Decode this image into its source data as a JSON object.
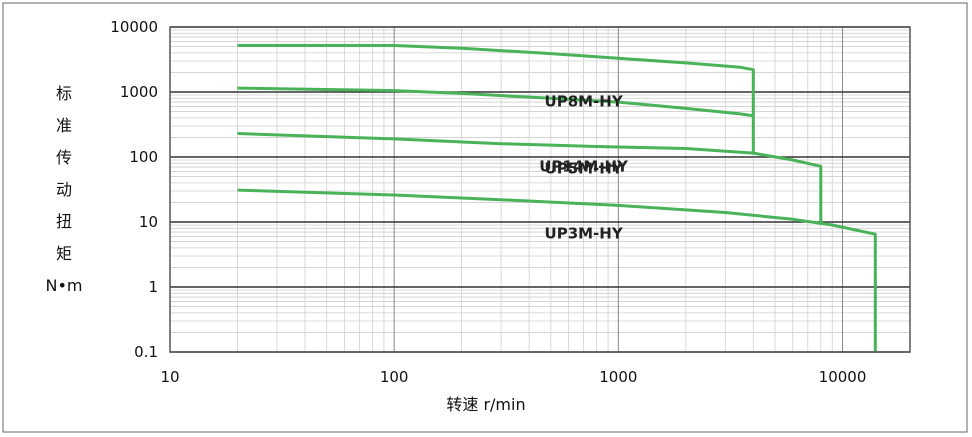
{
  "chart_data": {
    "type": "line",
    "title": "",
    "xlabel": "转速 r/min",
    "ylabel_chars": [
      "标",
      "准",
      "传",
      "动",
      "扭",
      "矩",
      "N•m"
    ],
    "x_scale": "log",
    "y_scale": "log",
    "xlim": [
      10,
      20000
    ],
    "ylim": [
      0.1,
      10000
    ],
    "x_ticks": [
      "10",
      "100",
      "1000",
      "10000"
    ],
    "y_ticks": [
      "10000",
      "1000",
      "100",
      "10",
      "1",
      "0.1"
    ],
    "grid": true,
    "colors": {
      "line": "#4ab35a",
      "major_grid": "#333333",
      "minor_grid": "#cfcfcf",
      "frame": "#555555"
    },
    "series": [
      {
        "name": "UP14M-HY",
        "x": [
          20,
          100,
          200,
          500,
          1000,
          2000,
          3500,
          4000,
          4000
        ],
        "y": [
          5200,
          5200,
          4700,
          3900,
          3300,
          2800,
          2400,
          2200,
          120
        ]
      },
      {
        "name": "UP8M-HY",
        "x": [
          20,
          100,
          200,
          500,
          1000,
          2000,
          3500,
          4000
        ],
        "y": [
          1150,
          1050,
          950,
          800,
          700,
          560,
          460,
          430
        ]
      },
      {
        "name": "UP5M-HY",
        "x": [
          20,
          100,
          300,
          800,
          2000,
          4000,
          6000,
          8000,
          8000
        ],
        "y": [
          230,
          190,
          160,
          145,
          135,
          115,
          90,
          72,
          10
        ]
      },
      {
        "name": "UP3M-HY",
        "x": [
          20,
          100,
          300,
          1000,
          3000,
          6000,
          9000,
          14000,
          14000
        ],
        "y": [
          31,
          26,
          22,
          18,
          14,
          11,
          9,
          6.5,
          0.1
        ]
      }
    ]
  }
}
